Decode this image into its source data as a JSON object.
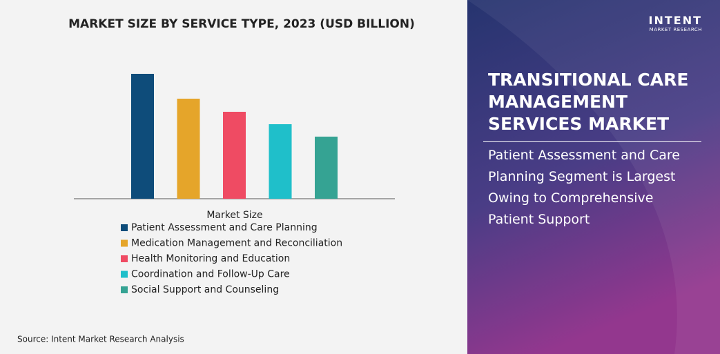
{
  "chart_data": {
    "type": "bar",
    "title": "MARKET SIZE BY SERVICE TYPE, 2023 (USD BILLION)",
    "legend_title": "Market Size",
    "categories": [
      "Patient Assessment and Care Planning",
      "Medication Management and Reconciliation",
      "Health Monitoring and Education",
      "Coordination and Follow-Up Care",
      "Social Support and Counseling"
    ],
    "values": [
      1.81,
      1.45,
      1.26,
      1.08,
      0.9
    ],
    "colors": [
      "#0e4c7a",
      "#e5a52a",
      "#ef4b63",
      "#1fbfca",
      "#35a393"
    ],
    "source": "Source: Intent Market Research Analysis"
  },
  "side_panel": {
    "title": "TRANSITIONAL CARE MANAGEMENT SERVICES MARKET",
    "subtitle": "Patient Assessment and Care Planning Segment is Largest Owing to Comprehensive Patient Support"
  },
  "logo": {
    "name": "INTENT",
    "tagline": "MARKET RESEARCH"
  }
}
